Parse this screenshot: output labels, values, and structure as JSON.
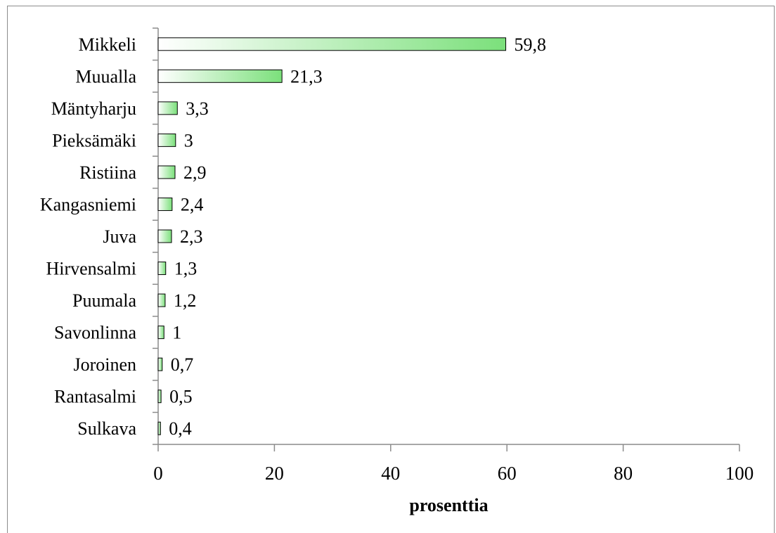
{
  "chart_data": {
    "type": "bar",
    "orientation": "horizontal",
    "categories": [
      "Mikkeli",
      "Muualla",
      "Mäntyharju",
      "Pieksämäki",
      "Ristiina",
      "Kangasniemi",
      "Juva",
      "Hirvensalmi",
      "Puumala",
      "Savonlinna",
      "Joroinen",
      "Rantasalmi",
      "Sulkava"
    ],
    "values": [
      59.8,
      21.3,
      3.3,
      3,
      2.9,
      2.4,
      2.3,
      1.3,
      1.2,
      1,
      0.7,
      0.5,
      0.4
    ],
    "value_labels": [
      "59,8",
      "21,3",
      "3,3",
      "3",
      "2,9",
      "2,4",
      "2,3",
      "1,3",
      "1,2",
      "1",
      "0,7",
      "0,5",
      "0,4"
    ],
    "xlabel": "prosenttia",
    "xlim": [
      0,
      100
    ],
    "x_ticks": [
      "0",
      "20",
      "40",
      "60",
      "80",
      "100"
    ],
    "grid": false,
    "colors": {
      "bar_start": "#ffffff",
      "bar_end": "#7be07b",
      "bar_border": "#000000",
      "axis": "#8c8c8c"
    }
  }
}
